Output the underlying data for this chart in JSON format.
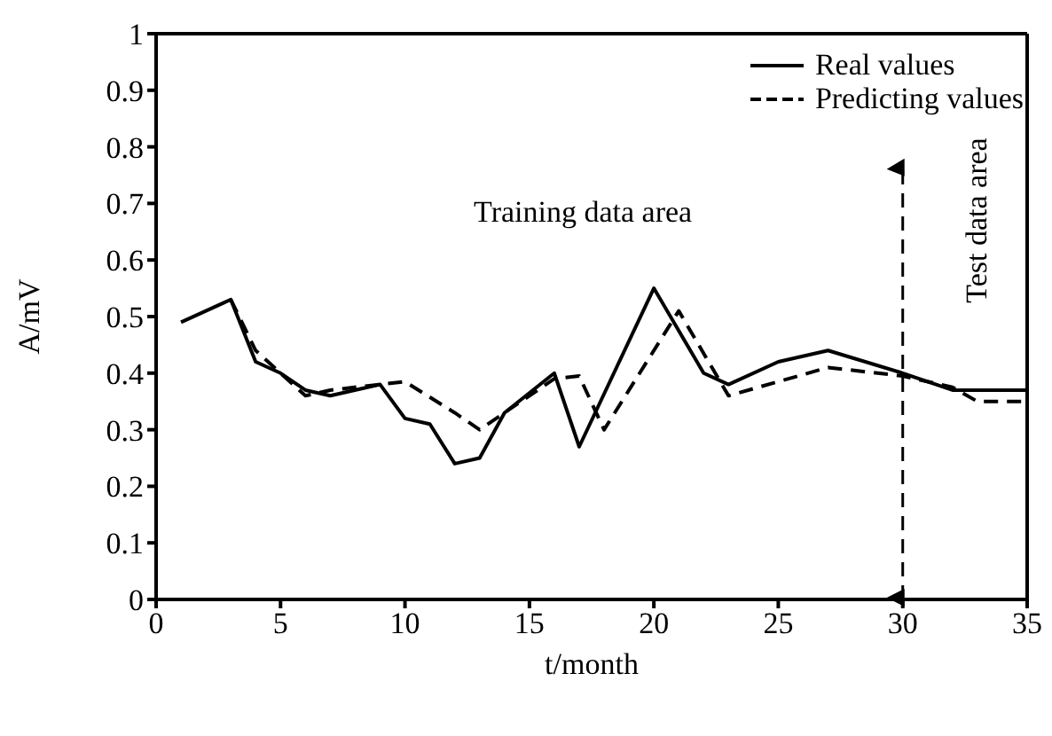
{
  "chart_data": {
    "type": "line",
    "xlabel": "t/month",
    "ylabel": "A/mV",
    "xlim": [
      0,
      35
    ],
    "xticks": [
      0,
      5,
      10,
      15,
      20,
      25,
      30,
      35
    ],
    "ylim": [
      0,
      1
    ],
    "yticks": [
      0,
      0.1,
      0.2,
      0.3,
      0.4,
      0.5,
      0.6,
      0.7,
      0.8,
      0.9,
      1
    ],
    "grid": false,
    "legend": "top right",
    "marker": "none",
    "series": [
      {
        "name": "Real values",
        "color": "#000000",
        "line_style": "solid",
        "x": [
          1,
          3,
          4,
          5,
          6,
          7,
          9,
          10,
          11,
          12,
          13,
          14,
          16,
          17,
          20,
          22,
          23,
          25,
          27,
          30,
          32,
          35
        ],
        "values": [
          0.49,
          0.53,
          0.42,
          0.4,
          0.37,
          0.36,
          0.38,
          0.32,
          0.31,
          0.24,
          0.25,
          0.33,
          0.4,
          0.27,
          0.55,
          0.4,
          0.38,
          0.42,
          0.44,
          0.4,
          0.37,
          0.37
        ]
      },
      {
        "name": "Predicting values",
        "color": "#000000",
        "line_style": "dashed",
        "x": [
          3,
          4,
          6,
          7,
          9,
          10,
          12,
          13,
          14,
          16,
          17,
          18,
          21,
          23,
          27,
          30,
          32,
          33,
          35
        ],
        "values": [
          0.53,
          0.44,
          0.36,
          0.37,
          0.38,
          0.385,
          0.33,
          0.3,
          0.33,
          0.39,
          0.395,
          0.3,
          0.51,
          0.36,
          0.41,
          0.395,
          0.375,
          0.35,
          0.35
        ]
      }
    ],
    "ref_lines": [
      {
        "axis": "x",
        "value": 30,
        "label": null,
        "color": "#000000",
        "line_style": "dashed"
      }
    ],
    "annotations": [
      "Training data area",
      "Test data area"
    ]
  }
}
